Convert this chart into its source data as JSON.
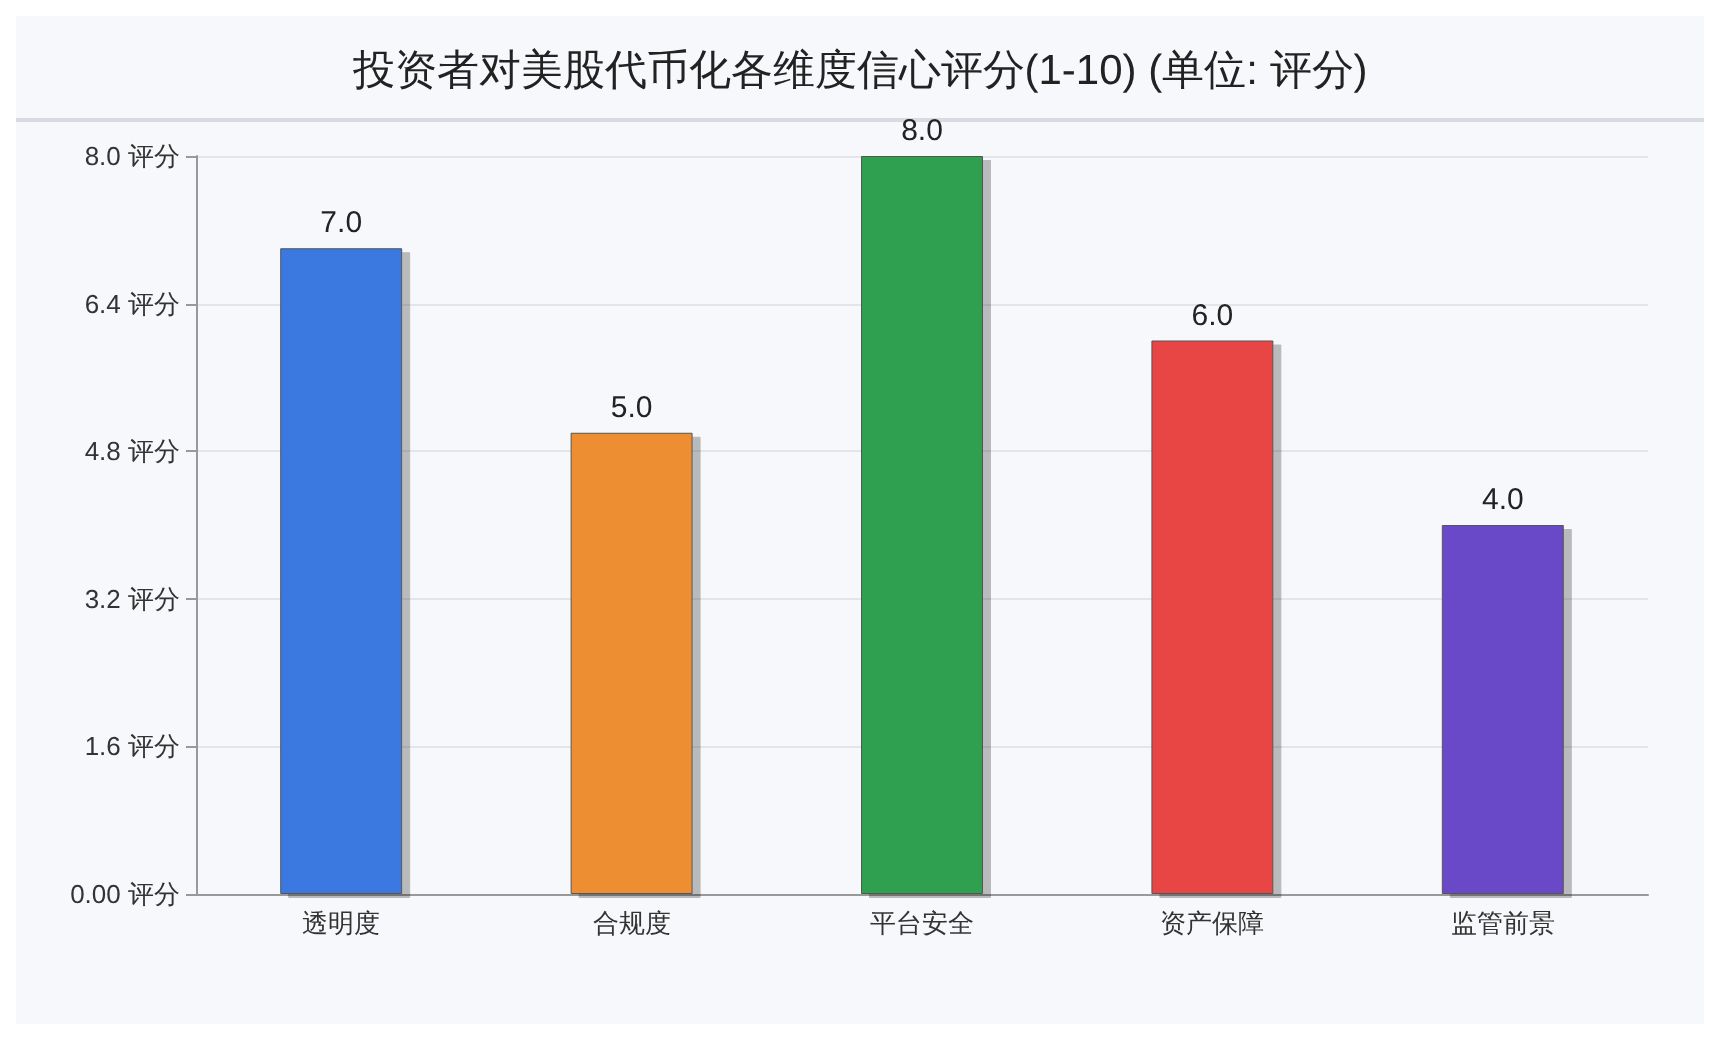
{
  "chart_data": {
    "type": "bar",
    "title": "投资者对美股代币化各维度信心评分(1-10) (单位: 评分)",
    "categories": [
      "透明度",
      "合规度",
      "平台安全",
      "资产保障",
      "监管前景"
    ],
    "values": [
      7.0,
      5.0,
      8.0,
      6.0,
      4.0
    ],
    "colors": [
      "#3a78e0",
      "#ee8e33",
      "#2fa04f",
      "#e84545",
      "#6a48c8"
    ],
    "ylim": [
      0,
      8
    ],
    "yticks": [
      {
        "value": 0,
        "label": "0.00 评分"
      },
      {
        "value": 1.6,
        "label": "1.6 评分"
      },
      {
        "value": 3.2,
        "label": "3.2 评分"
      },
      {
        "value": 4.8,
        "label": "4.8 评分"
      },
      {
        "value": 6.4,
        "label": "6.4 评分"
      },
      {
        "value": 8,
        "label": "8.0 评分"
      }
    ],
    "value_labels": [
      "7.0",
      "5.0",
      "8.0",
      "6.0",
      "4.0"
    ],
    "grid": "y"
  }
}
